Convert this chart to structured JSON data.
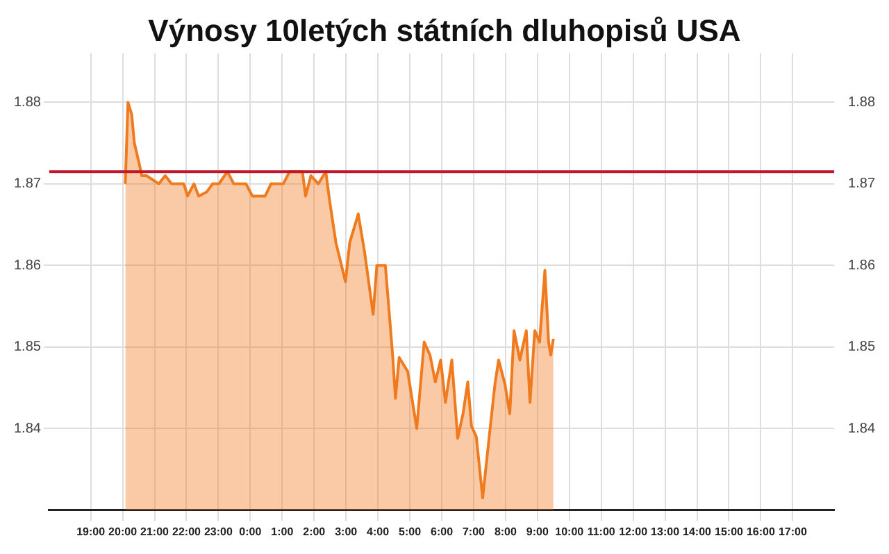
{
  "chart_data": {
    "type": "area",
    "title": "Výnosy 10letých státních dluhopisů USA",
    "xlim": [
      "2000-01-01T17:42",
      "2000-01-02T18:18"
    ],
    "ylim": [
      1.83,
      1.886
    ],
    "y2lim": [
      1.83,
      1.886
    ],
    "xticks": [
      {
        "value": "2000-01-01T19:00",
        "label": "19:00"
      },
      {
        "value": "2000-01-01T20:00",
        "label": "20:00"
      },
      {
        "value": "2000-01-01T21:00",
        "label": "21:00"
      },
      {
        "value": "2000-01-01T22:00",
        "label": "22:00"
      },
      {
        "value": "2000-01-01T23:00",
        "label": "23:00"
      },
      {
        "value": "2000-01-02T00:00",
        "label": "0:00"
      },
      {
        "value": "2000-01-02T01:00",
        "label": "1:00"
      },
      {
        "value": "2000-01-02T02:00",
        "label": "2:00"
      },
      {
        "value": "2000-01-02T03:00",
        "label": "3:00"
      },
      {
        "value": "2000-01-02T04:00",
        "label": "4:00"
      },
      {
        "value": "2000-01-02T05:00",
        "label": "5:00"
      },
      {
        "value": "2000-01-02T06:00",
        "label": "6:00"
      },
      {
        "value": "2000-01-02T07:00",
        "label": "7:00"
      },
      {
        "value": "2000-01-02T08:00",
        "label": "8:00"
      },
      {
        "value": "2000-01-02T09:00",
        "label": "9:00"
      },
      {
        "value": "2000-01-02T10:00",
        "label": "10:00"
      },
      {
        "value": "2000-01-02T11:00",
        "label": "11:00"
      },
      {
        "value": "2000-01-02T12:00",
        "label": "12:00"
      },
      {
        "value": "2000-01-02T13:00",
        "label": "13:00"
      },
      {
        "value": "2000-01-02T14:00",
        "label": "14:00"
      },
      {
        "value": "2000-01-02T15:00",
        "label": "15:00"
      },
      {
        "value": "2000-01-02T16:00",
        "label": "16:00"
      },
      {
        "value": "2000-01-02T17:00",
        "label": "17:00"
      }
    ],
    "yticks": [
      1.84,
      1.85,
      1.86,
      1.87,
      1.88
    ],
    "y2ticks": [
      1.84,
      1.85,
      1.86,
      1.87,
      1.88
    ],
    "grid": true,
    "legend": false,
    "marker": "none",
    "ref_lines": [
      {
        "axis": "y",
        "value": 1.8715,
        "color": "#c0182a"
      }
    ],
    "series": [
      {
        "color": "#f07b1f",
        "x": [
          "2000-01-01T20:05",
          "2000-01-01T20:10",
          "2000-01-01T20:17",
          "2000-01-01T20:22",
          "2000-01-01T20:31",
          "2000-01-01T20:36",
          "2000-01-01T20:45",
          "2000-01-01T21:08",
          "2000-01-01T21:20",
          "2000-01-01T21:32",
          "2000-01-01T21:55",
          "2000-01-01T22:02",
          "2000-01-01T22:14",
          "2000-01-01T22:23",
          "2000-01-01T22:38",
          "2000-01-01T22:49",
          "2000-01-01T23:01",
          "2000-01-01T23:17",
          "2000-01-01T23:29",
          "2000-01-01T23:52",
          "2000-01-02T00:04",
          "2000-01-02T00:28",
          "2000-01-02T00:39",
          "2000-01-02T01:02",
          "2000-01-02T01:14",
          "2000-01-02T01:38",
          "2000-01-02T01:44",
          "2000-01-02T01:54",
          "2000-01-02T02:08",
          "2000-01-02T02:22",
          "2000-01-02T02:29",
          "2000-01-02T02:41",
          "2000-01-02T02:59",
          "2000-01-02T03:07",
          "2000-01-02T03:23",
          "2000-01-02T03:35",
          "2000-01-02T03:51",
          "2000-01-02T03:58",
          "2000-01-02T04:14",
          "2000-01-02T04:24",
          "2000-01-02T04:28",
          "2000-01-02T04:33",
          "2000-01-02T04:40",
          "2000-01-02T04:56",
          "2000-01-02T05:13",
          "2000-01-02T05:27",
          "2000-01-02T05:38",
          "2000-01-02T05:48",
          "2000-01-02T05:58",
          "2000-01-02T06:07",
          "2000-01-02T06:19",
          "2000-01-02T06:30",
          "2000-01-02T06:40",
          "2000-01-02T06:49",
          "2000-01-02T06:56",
          "2000-01-02T07:05",
          "2000-01-02T07:17",
          "2000-01-02T07:29",
          "2000-01-02T07:40",
          "2000-01-02T07:47",
          "2000-01-02T07:59",
          "2000-01-02T08:08",
          "2000-01-02T08:16",
          "2000-01-02T08:27",
          "2000-01-02T08:39",
          "2000-01-02T08:46",
          "2000-01-02T08:55",
          "2000-01-02T09:04",
          "2000-01-02T09:14",
          "2000-01-02T09:21",
          "2000-01-02T09:25",
          "2000-01-02T09:30"
        ],
        "values": [
          1.87,
          1.88,
          1.8785,
          1.875,
          1.8725,
          1.871,
          1.871,
          1.87,
          1.871,
          1.87,
          1.87,
          1.8685,
          1.87,
          1.8685,
          1.869,
          1.87,
          1.87,
          1.8715,
          1.87,
          1.87,
          1.8685,
          1.8685,
          1.87,
          1.87,
          1.8715,
          1.8715,
          1.8685,
          1.871,
          1.87,
          1.8715,
          1.868,
          1.8628,
          1.858,
          1.8628,
          1.8663,
          1.8616,
          1.854,
          1.86,
          1.86,
          1.852,
          1.8487,
          1.8437,
          1.8487,
          1.847,
          1.84,
          1.8506,
          1.849,
          1.8457,
          1.8484,
          1.8432,
          1.8484,
          1.8388,
          1.8418,
          1.8457,
          1.8403,
          1.839,
          1.8315,
          1.8388,
          1.8454,
          1.8484,
          1.8454,
          1.8418,
          1.852,
          1.8484,
          1.852,
          1.8432,
          1.852,
          1.8506,
          1.8594,
          1.8506,
          1.849,
          1.851
        ]
      }
    ]
  }
}
